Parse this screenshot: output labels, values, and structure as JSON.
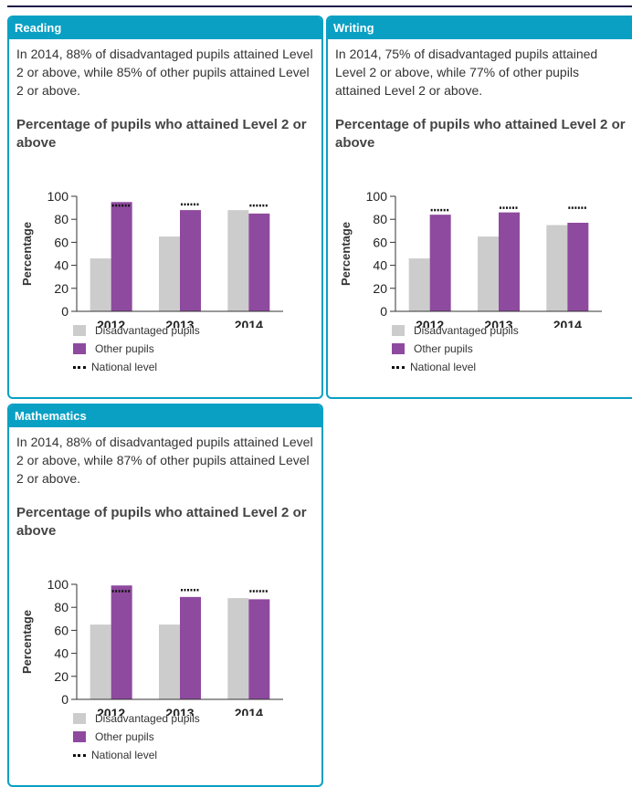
{
  "colors": {
    "header": "#0aa0c4",
    "disadvantaged": "#cccccc",
    "other": "#8e4a9e",
    "national": "#111111"
  },
  "legend": {
    "disadvantaged": "Disadvantaged pupils",
    "other": "Other pupils",
    "national": "National level"
  },
  "panels": [
    {
      "header": "Reading",
      "summary": "In 2014, 88% of disadvantaged pupils attained Level 2 or above, while 85% of other pupils attained Level 2 or above.",
      "chart_title": "Percentage of pupils who attained Level 2 or above"
    },
    {
      "header": "Writing",
      "summary": "In 2014, 75% of disadvantaged pupils attained Level 2 or above, while 77% of other pupils attained Level 2 or above.",
      "chart_title": "Percentage of pupils who attained Level 2 or above"
    },
    {
      "header": "Mathematics",
      "summary": "In 2014, 88% of disadvantaged pupils attained Level 2 or above, while 87% of other pupils attained Level 2 or above.",
      "chart_title": "Percentage of pupils who attained Level 2 or above"
    }
  ],
  "chart_data": [
    {
      "type": "bar",
      "title": "Percentage of pupils who attained Level 2 or above",
      "ylabel": "Percentage",
      "ylim": [
        0,
        100
      ],
      "yticks": [
        0,
        20,
        40,
        60,
        80,
        100
      ],
      "categories": [
        "2012",
        "2013",
        "2014"
      ],
      "series": [
        {
          "name": "Disadvantaged pupils",
          "values": [
            46,
            65,
            88
          ]
        },
        {
          "name": "Other pupils",
          "values": [
            95,
            88,
            85
          ]
        },
        {
          "name": "National level",
          "values": [
            92,
            93,
            92
          ]
        }
      ]
    },
    {
      "type": "bar",
      "title": "Percentage of pupils who attained Level 2 or above",
      "ylabel": "Percentage",
      "ylim": [
        0,
        100
      ],
      "yticks": [
        0,
        20,
        40,
        60,
        80,
        100
      ],
      "categories": [
        "2012",
        "2013",
        "2014"
      ],
      "series": [
        {
          "name": "Disadvantaged pupils",
          "values": [
            46,
            65,
            75
          ]
        },
        {
          "name": "Other pupils",
          "values": [
            84,
            86,
            77
          ]
        },
        {
          "name": "National level",
          "values": [
            88,
            90,
            90
          ]
        }
      ]
    },
    {
      "type": "bar",
      "title": "Percentage of pupils who attained Level 2 or above",
      "ylabel": "Percentage",
      "ylim": [
        0,
        100
      ],
      "yticks": [
        0,
        20,
        40,
        60,
        80,
        100
      ],
      "categories": [
        "2012",
        "2013",
        "2014"
      ],
      "series": [
        {
          "name": "Disadvantaged pupils",
          "values": [
            65,
            65,
            88
          ]
        },
        {
          "name": "Other pupils",
          "values": [
            99,
            89,
            87
          ]
        },
        {
          "name": "National level",
          "values": [
            94,
            95,
            94
          ]
        }
      ]
    }
  ]
}
